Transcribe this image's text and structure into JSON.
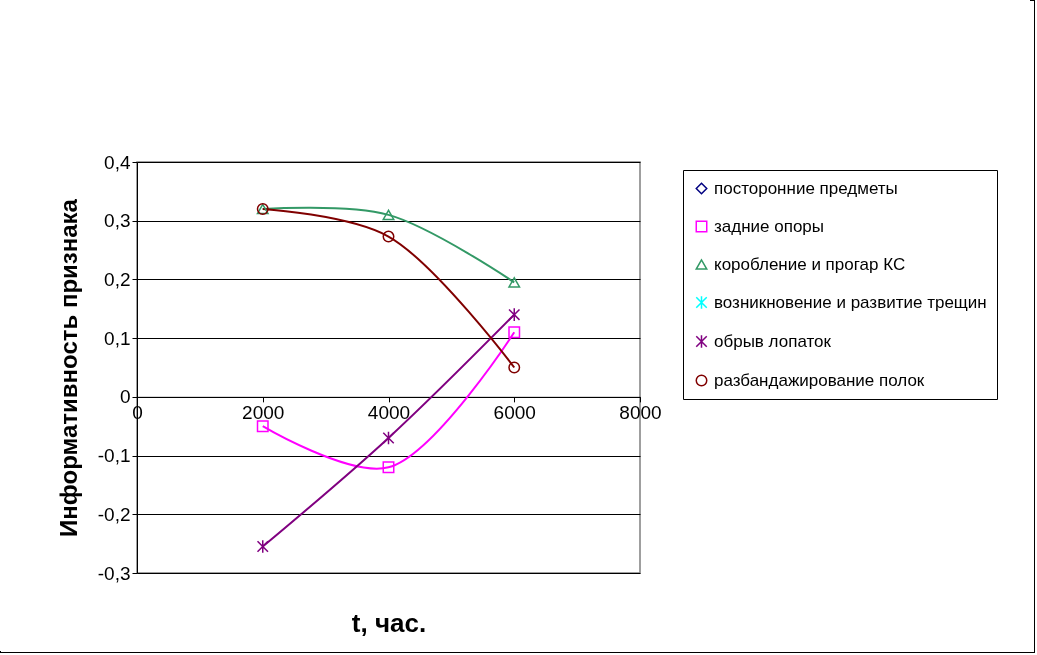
{
  "chart_data": {
    "type": "line",
    "xlabel": "t, час.",
    "ylabel": "Информативность признака",
    "x": [
      2000,
      4000,
      6000
    ],
    "series": [
      {
        "name": "посторонние предметы",
        "color": "#000080",
        "marker": "diamond",
        "values": [
          null,
          null,
          null
        ]
      },
      {
        "name": "задние опоры",
        "color": "#ff00ff",
        "marker": "square",
        "values": [
          -0.05,
          -0.12,
          0.11
        ]
      },
      {
        "name": "коробление и прогар КС",
        "color": "#339966",
        "marker": "triangle",
        "values": [
          0.32,
          0.31,
          0.195
        ]
      },
      {
        "name": "возникновение и развитие трещин",
        "color": "#00ffff",
        "marker": "cross",
        "values": [
          null,
          null,
          null
        ]
      },
      {
        "name": "обрыв лопаток",
        "color": "#800080",
        "marker": "cross",
        "values": [
          -0.255,
          -0.07,
          0.14
        ]
      },
      {
        "name": "разбандажирование полок",
        "color": "#800000",
        "marker": "circle",
        "values": [
          0.32,
          0.273,
          0.05
        ]
      }
    ],
    "xlim": [
      0,
      8000
    ],
    "xticks": [
      0,
      2000,
      4000,
      6000,
      8000
    ],
    "ylim": [
      -0.3,
      0.4
    ],
    "yticks": [
      {
        "value": -0.3,
        "label": "-0,3"
      },
      {
        "value": -0.2,
        "label": "-0,2"
      },
      {
        "value": -0.1,
        "label": "-0,1"
      },
      {
        "value": 0,
        "label": "0"
      },
      {
        "value": 0.1,
        "label": "0,1"
      },
      {
        "value": 0.2,
        "label": "0,2"
      },
      {
        "value": 0.3,
        "label": "0,3"
      },
      {
        "value": 0.4,
        "label": "0,4"
      }
    ],
    "grid": "y",
    "legend": "right",
    "line_style": "solid"
  }
}
